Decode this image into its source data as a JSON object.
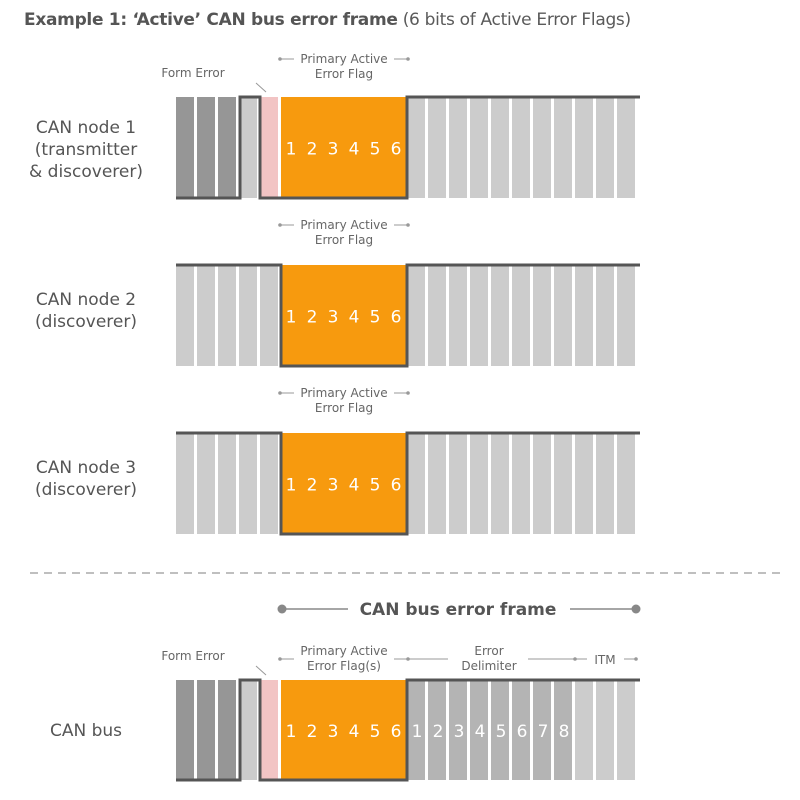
{
  "title": {
    "bold": "Example 1: ‘Active’ CAN bus error frame",
    "rest": " (6 bits of Active Error Flags)"
  },
  "nodes": [
    {
      "label_lines": [
        "CAN node 1",
        "(transmitter",
        "& discoverer)"
      ],
      "form_error_label": "Form Error",
      "flag_label_lines": [
        "Primary Active",
        "Error Flag"
      ],
      "flag_bits": [
        "1",
        "2",
        "3",
        "4",
        "5",
        "6"
      ],
      "has_form_error": true
    },
    {
      "label_lines": [
        "CAN node 2",
        "(discoverer)"
      ],
      "flag_label_lines": [
        "Primary Active",
        "Error Flag"
      ],
      "flag_bits": [
        "1",
        "2",
        "3",
        "4",
        "5",
        "6"
      ],
      "has_form_error": false
    },
    {
      "label_lines": [
        "CAN node 3",
        "(discoverer)"
      ],
      "flag_label_lines": [
        "Primary Active",
        "Error Flag"
      ],
      "flag_bits": [
        "1",
        "2",
        "3",
        "4",
        "5",
        "6"
      ],
      "has_form_error": false
    }
  ],
  "bus": {
    "frame_title": "CAN bus error frame",
    "label": "CAN bus",
    "form_error_label": "Form Error",
    "flag_label_lines": [
      "Primary Active",
      "Error Flag(s)"
    ],
    "delimiter_label_lines": [
      "Error",
      "Delimiter"
    ],
    "itm_label": "ITM",
    "flag_bits": [
      "1",
      "2",
      "3",
      "4",
      "5",
      "6"
    ],
    "delimiter_bits": [
      "1",
      "2",
      "3",
      "4",
      "5",
      "6",
      "7",
      "8"
    ]
  },
  "colors": {
    "dark_bit": "#969696",
    "light_bit": "#cccccc",
    "form_error_bit": "#f2c4c4",
    "flag_bit": "#f79a0e",
    "delimiter_bit": "#b4b4b4",
    "outline": "#555555",
    "text": "#555555"
  }
}
